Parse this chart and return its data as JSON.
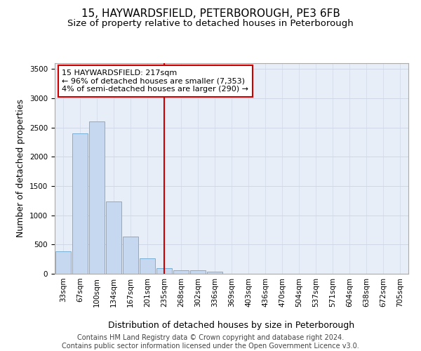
{
  "title": "15, HAYWARDSFIELD, PETERBOROUGH, PE3 6FB",
  "subtitle": "Size of property relative to detached houses in Peterborough",
  "xlabel": "Distribution of detached houses by size in Peterborough",
  "ylabel": "Number of detached properties",
  "footer_line1": "Contains HM Land Registry data © Crown copyright and database right 2024.",
  "footer_line2": "Contains public sector information licensed under the Open Government Licence v3.0.",
  "bar_labels": [
    "33sqm",
    "67sqm",
    "100sqm",
    "134sqm",
    "167sqm",
    "201sqm",
    "235sqm",
    "268sqm",
    "302sqm",
    "336sqm",
    "369sqm",
    "403sqm",
    "436sqm",
    "470sqm",
    "504sqm",
    "537sqm",
    "571sqm",
    "604sqm",
    "638sqm",
    "672sqm",
    "705sqm"
  ],
  "bar_values": [
    390,
    2400,
    2600,
    1240,
    640,
    260,
    100,
    60,
    55,
    40,
    0,
    0,
    0,
    0,
    0,
    0,
    0,
    0,
    0,
    0,
    0
  ],
  "bar_color": "#c5d8f0",
  "bar_edge_color": "#7aafd4",
  "vline_x": 6.0,
  "vline_color": "#cc0000",
  "annotation_line1": "15 HAYWARDSFIELD: 217sqm",
  "annotation_line2": "← 96% of detached houses are smaller (7,353)",
  "annotation_line3": "4% of semi-detached houses are larger (290) →",
  "annotation_box_color": "#cc0000",
  "ylim": [
    0,
    3600
  ],
  "yticks": [
    0,
    500,
    1000,
    1500,
    2000,
    2500,
    3000,
    3500
  ],
  "grid_color": "#d0d8e8",
  "bg_color": "#e8eef8",
  "title_fontsize": 11,
  "subtitle_fontsize": 9.5,
  "ylabel_fontsize": 9,
  "xlabel_fontsize": 9,
  "tick_fontsize": 7.5,
  "annotation_fontsize": 8,
  "footer_fontsize": 7
}
